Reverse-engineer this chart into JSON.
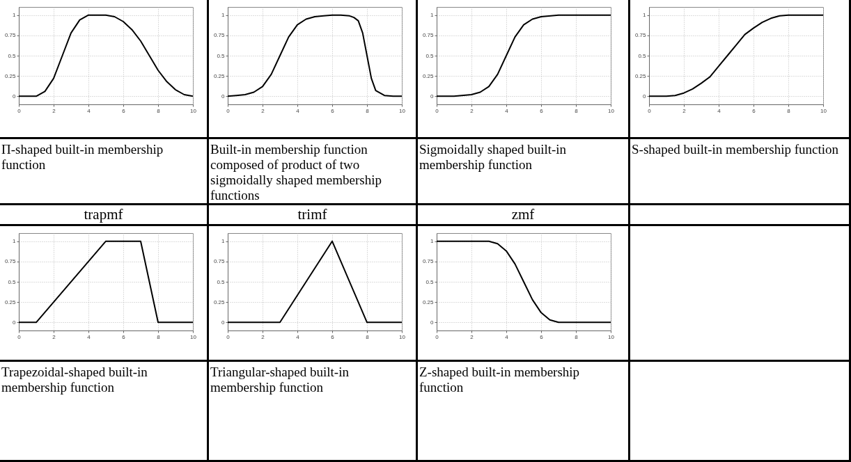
{
  "chart_data": [
    {
      "type": "line",
      "color": "#000000",
      "x": [
        0,
        0.5,
        1,
        1.5,
        2,
        2.5,
        3,
        3.5,
        4,
        4.5,
        5,
        5.5,
        6,
        6.5,
        7,
        7.5,
        8,
        8.5,
        9,
        9.5,
        10
      ],
      "values": [
        0,
        0,
        0,
        0.06,
        0.22,
        0.5,
        0.78,
        0.94,
        1,
        1,
        1,
        0.98,
        0.92,
        0.82,
        0.68,
        0.5,
        0.32,
        0.18,
        0.08,
        0.02,
        0
      ],
      "xlim": [
        0,
        10
      ],
      "ylim": [
        -0.1,
        1.1
      ],
      "xticks": [
        0,
        2,
        4,
        6,
        8,
        10
      ],
      "yticks": [
        0,
        0.25,
        0.5,
        0.75,
        1
      ],
      "grid": true,
      "line_style": "solid",
      "annotations": [
        "Π-shaped built-in membership function"
      ]
    },
    {
      "type": "line",
      "color": "#000000",
      "x": [
        0,
        0.5,
        1,
        1.5,
        2,
        2.5,
        3,
        3.5,
        4,
        4.5,
        5,
        5.5,
        6,
        6.5,
        7,
        7.25,
        7.5,
        7.75,
        8,
        8.25,
        8.5,
        9,
        9.5,
        10
      ],
      "values": [
        0,
        0.01,
        0.02,
        0.05,
        0.12,
        0.27,
        0.5,
        0.73,
        0.88,
        0.95,
        0.98,
        0.99,
        1,
        1,
        0.99,
        0.97,
        0.93,
        0.78,
        0.5,
        0.22,
        0.07,
        0.01,
        0,
        0
      ],
      "xlim": [
        0,
        10
      ],
      "ylim": [
        -0.1,
        1.1
      ],
      "xticks": [
        0,
        2,
        4,
        6,
        8,
        10
      ],
      "yticks": [
        0,
        0.25,
        0.5,
        0.75,
        1
      ],
      "grid": true,
      "line_style": "solid",
      "annotations": [
        "Built-in membership function composed of product of two sigmoidally shaped membership functions"
      ]
    },
    {
      "type": "line",
      "color": "#000000",
      "x": [
        0,
        1,
        2,
        2.5,
        3,
        3.5,
        4,
        4.5,
        5,
        5.5,
        6,
        7,
        8,
        10
      ],
      "values": [
        0,
        0,
        0.02,
        0.05,
        0.12,
        0.27,
        0.5,
        0.73,
        0.88,
        0.95,
        0.98,
        1,
        1,
        1
      ],
      "xlim": [
        0,
        10
      ],
      "ylim": [
        -0.1,
        1.1
      ],
      "xticks": [
        0,
        2,
        4,
        6,
        8,
        10
      ],
      "yticks": [
        0,
        0.25,
        0.5,
        0.75,
        1
      ],
      "grid": true,
      "line_style": "solid",
      "annotations": [
        "Sigmoidally shaped built-in membership function"
      ]
    },
    {
      "type": "line",
      "color": "#000000",
      "x": [
        0,
        1,
        1.5,
        2,
        2.5,
        3,
        3.5,
        4,
        4.5,
        5,
        5.5,
        6,
        6.5,
        7,
        7.5,
        8,
        10
      ],
      "values": [
        0,
        0,
        0.01,
        0.04,
        0.09,
        0.16,
        0.24,
        0.37,
        0.5,
        0.63,
        0.76,
        0.84,
        0.91,
        0.96,
        0.99,
        1,
        1
      ],
      "xlim": [
        0,
        10
      ],
      "ylim": [
        -0.1,
        1.1
      ],
      "xticks": [
        0,
        2,
        4,
        6,
        8,
        10
      ],
      "yticks": [
        0,
        0.25,
        0.5,
        0.75,
        1
      ],
      "grid": true,
      "line_style": "solid",
      "annotations": [
        "S-shaped built-in membership function"
      ]
    },
    {
      "type": "line",
      "title": "trapmf",
      "color": "#000000",
      "x": [
        0,
        1,
        5,
        7,
        8,
        10
      ],
      "values": [
        0,
        0,
        1,
        1,
        0,
        0
      ],
      "xlim": [
        0,
        10
      ],
      "ylim": [
        -0.1,
        1.1
      ],
      "xticks": [
        0,
        2,
        4,
        6,
        8,
        10
      ],
      "yticks": [
        0,
        0.25,
        0.5,
        0.75,
        1
      ],
      "grid": true,
      "line_style": "solid",
      "annotations": [
        "Trapezoidal-shaped built-in membership function"
      ]
    },
    {
      "type": "line",
      "title": "trimf",
      "color": "#000000",
      "x": [
        0,
        3,
        6,
        8,
        10
      ],
      "values": [
        0,
        0,
        1,
        0,
        0
      ],
      "xlim": [
        0,
        10
      ],
      "ylim": [
        -0.1,
        1.1
      ],
      "xticks": [
        0,
        2,
        4,
        6,
        8,
        10
      ],
      "yticks": [
        0,
        0.25,
        0.5,
        0.75,
        1
      ],
      "grid": true,
      "line_style": "solid",
      "annotations": [
        "Triangular-shaped built-in membership function"
      ]
    },
    {
      "type": "line",
      "title": "zmf",
      "color": "#000000",
      "x": [
        0,
        3,
        3.5,
        4,
        4.5,
        5,
        5.5,
        6,
        6.5,
        7,
        10
      ],
      "values": [
        1,
        1,
        0.97,
        0.88,
        0.72,
        0.5,
        0.28,
        0.12,
        0.03,
        0,
        0
      ],
      "xlim": [
        0,
        10
      ],
      "ylim": [
        -0.1,
        1.1
      ],
      "xticks": [
        0,
        2,
        4,
        6,
        8,
        10
      ],
      "yticks": [
        0,
        0.25,
        0.5,
        0.75,
        1
      ],
      "grid": true,
      "line_style": "solid",
      "annotations": [
        "Z-shaped built-in membership function"
      ]
    }
  ]
}
